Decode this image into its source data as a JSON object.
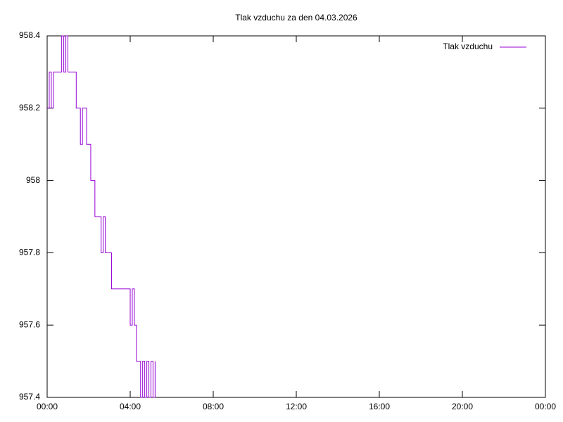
{
  "chart_data": {
    "type": "line",
    "step": true,
    "title": "Tlak vzduchu za den 04.03.2026",
    "x": [
      0.0,
      0.1,
      0.2,
      0.3,
      0.4,
      0.5,
      0.6,
      0.7,
      0.8,
      0.9,
      1.0,
      1.1,
      1.2,
      1.3,
      1.4,
      1.5,
      1.6,
      1.7,
      1.8,
      1.9,
      2.0,
      2.1,
      2.2,
      2.3,
      2.4,
      2.5,
      2.6,
      2.7,
      2.8,
      2.9,
      3.0,
      3.1,
      3.2,
      3.3,
      3.4,
      3.5,
      3.6,
      3.7,
      3.8,
      3.9,
      4.0,
      4.1,
      4.2,
      4.3,
      4.4,
      4.5,
      4.6,
      4.7,
      4.8,
      4.9,
      5.0,
      5.1,
      5.2
    ],
    "series": [
      {
        "name": "Tlak vzduchu",
        "color": "#9400d3",
        "values": [
          958.2,
          958.3,
          958.2,
          958.3,
          958.3,
          958.3,
          958.3,
          958.4,
          958.3,
          958.4,
          958.3,
          958.3,
          958.3,
          958.3,
          958.2,
          958.2,
          958.1,
          958.2,
          958.2,
          958.1,
          958.1,
          958.0,
          958.0,
          957.9,
          957.9,
          957.9,
          957.8,
          957.9,
          957.8,
          957.8,
          957.8,
          957.7,
          957.7,
          957.7,
          957.7,
          957.7,
          957.7,
          957.7,
          957.7,
          957.7,
          957.6,
          957.7,
          957.6,
          957.5,
          957.5,
          957.4,
          957.5,
          957.4,
          957.5,
          957.4,
          957.5,
          957.4,
          957.5
        ]
      }
    ],
    "xlim": [
      0,
      24
    ],
    "xticks": [
      {
        "value": 0,
        "label": "00:00"
      },
      {
        "value": 4,
        "label": "04:00"
      },
      {
        "value": 8,
        "label": "08:00"
      },
      {
        "value": 12,
        "label": "12:00"
      },
      {
        "value": 16,
        "label": "16:00"
      },
      {
        "value": 20,
        "label": "20:00"
      },
      {
        "value": 24,
        "label": "00:00"
      }
    ],
    "ylim": [
      957.4,
      958.4
    ],
    "yticks": [
      957.4,
      957.6,
      957.8,
      958,
      958.2,
      958.4
    ],
    "grid": false,
    "legend": "top-right"
  }
}
